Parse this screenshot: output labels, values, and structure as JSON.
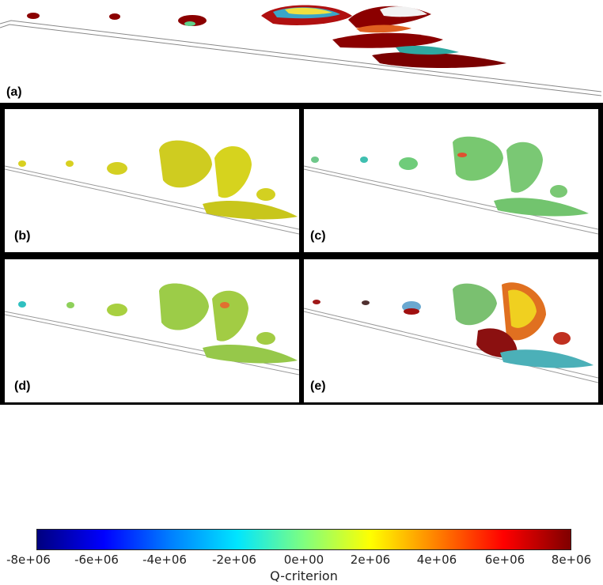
{
  "panels": [
    {
      "id": "a",
      "label": "(a)"
    },
    {
      "id": "b",
      "label": "(b)"
    },
    {
      "id": "c",
      "label": "(c)"
    },
    {
      "id": "d",
      "label": "(d)"
    },
    {
      "id": "e",
      "label": "(e)"
    }
  ],
  "colorbar": {
    "title": "Q-criterion",
    "ticks": [
      "-8e+06",
      "-6e+06",
      "-4e+06",
      "-2e+06",
      "0e+00",
      "2e+06",
      "4e+06",
      "6e+06",
      "8e+06"
    ],
    "colors": [
      "#00007f",
      "#0000ff",
      "#007fff",
      "#00e5ff",
      "#7fff7f",
      "#ffff00",
      "#ff7f00",
      "#ff0000",
      "#7f0000"
    ]
  }
}
